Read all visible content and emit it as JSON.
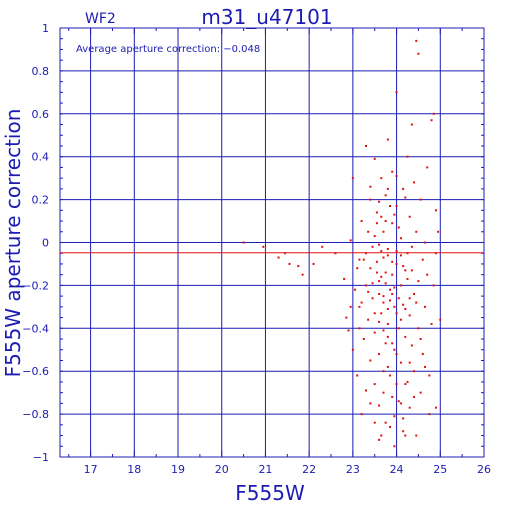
{
  "chart_data": {
    "type": "scatter",
    "title": "m31_u47101",
    "panel_label": "WF2",
    "annotation": "Average aperture correction: −0.048",
    "xlabel": "F555W",
    "ylabel": "F555W aperture correction",
    "xlim": [
      16.3,
      26
    ],
    "ylim": [
      -1,
      1
    ],
    "x_ticks": [
      17,
      18,
      19,
      20,
      21,
      22,
      23,
      24,
      25,
      26
    ],
    "y_ticks": [
      -1,
      -0.8,
      -0.6,
      -0.4,
      -0.2,
      0,
      0.2,
      0.4,
      0.6,
      0.8,
      1
    ],
    "x_tick_labels": [
      "17",
      "18",
      "19",
      "20",
      "21",
      "22",
      "23",
      "24",
      "25",
      "26"
    ],
    "y_tick_labels": [
      "−1",
      "−0.8",
      "−0.6",
      "−0.4",
      "−0.2",
      "0",
      "0.2",
      "0.4",
      "0.6",
      "0.8",
      "1"
    ],
    "grid": true,
    "reference_line": {
      "y": -0.048,
      "color": "#e01010"
    },
    "colors": {
      "axes": "#1c1cb4",
      "points": "#e01010",
      "background": "#ffffff"
    },
    "series": [
      {
        "points": [
          [
            20.5,
            0.0
          ],
          [
            20.95,
            -0.02
          ],
          [
            21.3,
            -0.07
          ],
          [
            21.45,
            -0.05
          ],
          [
            21.55,
            -0.1
          ],
          [
            21.75,
            -0.11
          ],
          [
            21.85,
            -0.15
          ],
          [
            22.1,
            -0.1
          ],
          [
            22.3,
            -0.02
          ],
          [
            22.6,
            -0.05
          ],
          [
            22.8,
            -0.17
          ],
          [
            22.85,
            -0.35
          ],
          [
            22.9,
            -0.41
          ],
          [
            22.95,
            -0.3
          ],
          [
            22.95,
            0.01
          ],
          [
            23.0,
            0.3
          ],
          [
            23.0,
            -0.5
          ],
          [
            23.05,
            -0.22
          ],
          [
            23.1,
            -0.12
          ],
          [
            23.1,
            -0.62
          ],
          [
            23.15,
            -0.08
          ],
          [
            23.15,
            -0.3
          ],
          [
            23.2,
            0.1
          ],
          [
            23.2,
            -0.8
          ],
          [
            23.25,
            -0.45
          ],
          [
            23.3,
            0.45
          ],
          [
            23.3,
            -0.2
          ],
          [
            23.3,
            -0.69
          ],
          [
            23.35,
            0.05
          ],
          [
            23.35,
            -0.36
          ],
          [
            23.4,
            0.2
          ],
          [
            23.4,
            -0.12
          ],
          [
            23.4,
            -0.55
          ],
          [
            23.45,
            -0.02
          ],
          [
            23.45,
            -0.26
          ],
          [
            23.5,
            0.39
          ],
          [
            23.5,
            -0.42
          ],
          [
            23.5,
            -0.84
          ],
          [
            23.55,
            0.14
          ],
          [
            23.55,
            -0.09
          ],
          [
            23.6,
            -0.18
          ],
          [
            23.6,
            -0.52
          ],
          [
            23.6,
            -0.92
          ],
          [
            23.65,
            0.3
          ],
          [
            23.65,
            -0.04
          ],
          [
            23.65,
            -0.33
          ],
          [
            23.7,
            0.05
          ],
          [
            23.7,
            -0.25
          ],
          [
            23.7,
            -0.7
          ],
          [
            23.75,
            0.22
          ],
          [
            23.75,
            -0.14
          ],
          [
            23.75,
            -0.47
          ],
          [
            23.8,
            0.48
          ],
          [
            23.8,
            -0.06
          ],
          [
            23.8,
            -0.38
          ],
          [
            23.85,
            -0.22
          ],
          [
            23.85,
            -0.62
          ],
          [
            23.85,
            -0.86
          ],
          [
            23.9,
            0.33
          ],
          [
            23.9,
            0.09
          ],
          [
            23.9,
            -0.15
          ],
          [
            23.95,
            -0.3
          ],
          [
            23.95,
            -0.5
          ],
          [
            23.95,
            -0.95
          ],
          [
            24.0,
            0.7
          ],
          [
            24.0,
            0.17
          ],
          [
            24.0,
            -0.1
          ],
          [
            24.05,
            -0.4
          ],
          [
            24.05,
            -0.74
          ],
          [
            24.1,
            0.02
          ],
          [
            24.1,
            -0.2
          ],
          [
            24.1,
            -0.56
          ],
          [
            24.15,
            0.25
          ],
          [
            24.15,
            -0.29
          ],
          [
            24.15,
            -0.82
          ],
          [
            24.2,
            -0.13
          ],
          [
            24.2,
            -0.44
          ],
          [
            24.2,
            -0.9
          ],
          [
            24.25,
            0.4
          ],
          [
            24.25,
            -0.05
          ],
          [
            24.25,
            -0.65
          ],
          [
            24.3,
            0.12
          ],
          [
            24.3,
            -0.34
          ],
          [
            24.3,
            -0.77
          ],
          [
            24.35,
            0.55
          ],
          [
            24.35,
            -0.02
          ],
          [
            24.35,
            -0.48
          ],
          [
            24.4,
            0.28
          ],
          [
            24.4,
            -0.24
          ],
          [
            24.4,
            -0.6
          ],
          [
            24.45,
            0.94
          ],
          [
            24.45,
            0.05
          ],
          [
            24.45,
            -0.9
          ],
          [
            24.5,
            0.88
          ],
          [
            24.5,
            -0.18
          ],
          [
            24.5,
            -0.4
          ],
          [
            24.55,
            0.2
          ],
          [
            24.55,
            -0.7
          ],
          [
            24.6,
            -0.08
          ],
          [
            24.6,
            -0.52
          ],
          [
            24.65,
            0.0
          ],
          [
            24.65,
            -0.3
          ],
          [
            24.7,
            0.35
          ],
          [
            24.7,
            -0.15
          ],
          [
            24.75,
            -0.62
          ],
          [
            24.75,
            -0.8
          ],
          [
            24.8,
            0.57
          ],
          [
            24.8,
            -0.38
          ],
          [
            24.85,
            0.6
          ],
          [
            24.85,
            -0.2
          ],
          [
            24.9,
            0.15
          ],
          [
            24.9,
            -0.77
          ],
          [
            24.95,
            0.05
          ],
          [
            25.0,
            -0.36
          ],
          [
            24.9,
            -0.05
          ],
          [
            23.5,
            0.03
          ],
          [
            23.6,
            -0.01
          ],
          [
            23.7,
            -0.07
          ],
          [
            23.8,
            -0.03
          ],
          [
            23.9,
            -0.09
          ],
          [
            24.0,
            -0.04
          ],
          [
            24.1,
            -0.06
          ],
          [
            23.55,
            -0.14
          ],
          [
            23.65,
            -0.16
          ],
          [
            23.75,
            -0.19
          ],
          [
            23.85,
            -0.27
          ],
          [
            23.95,
            -0.21
          ],
          [
            24.05,
            -0.26
          ],
          [
            23.6,
            -0.24
          ],
          [
            23.7,
            -0.28
          ],
          [
            23.8,
            -0.31
          ],
          [
            23.9,
            -0.24
          ],
          [
            24.0,
            -0.33
          ],
          [
            23.45,
            -0.19
          ],
          [
            23.35,
            -0.23
          ],
          [
            23.25,
            -0.08
          ],
          [
            24.15,
            -0.11
          ],
          [
            24.25,
            -0.17
          ],
          [
            24.35,
            -0.13
          ],
          [
            23.5,
            -0.33
          ],
          [
            23.6,
            -0.37
          ],
          [
            23.7,
            -0.41
          ],
          [
            23.8,
            -0.44
          ],
          [
            23.9,
            -0.47
          ],
          [
            24.0,
            -0.52
          ],
          [
            24.1,
            -0.36
          ],
          [
            24.2,
            -0.31
          ],
          [
            24.3,
            -0.26
          ],
          [
            23.55,
            0.09
          ],
          [
            23.65,
            0.12
          ],
          [
            23.75,
            0.1
          ],
          [
            23.85,
            0.17
          ],
          [
            23.95,
            0.13
          ],
          [
            24.05,
            0.07
          ],
          [
            23.4,
            0.26
          ],
          [
            23.6,
            0.19
          ],
          [
            23.8,
            0.25
          ],
          [
            24.0,
            0.31
          ],
          [
            24.2,
            0.21
          ],
          [
            23.3,
            -0.05
          ],
          [
            23.2,
            -0.28
          ],
          [
            23.15,
            -0.4
          ],
          [
            24.45,
            -0.28
          ],
          [
            24.55,
            -0.45
          ],
          [
            24.65,
            -0.58
          ],
          [
            24.4,
            -0.72
          ],
          [
            24.3,
            -0.56
          ],
          [
            24.2,
            -0.66
          ],
          [
            24.1,
            -0.75
          ],
          [
            24.0,
            -0.66
          ],
          [
            23.9,
            -0.72
          ],
          [
            23.8,
            -0.58
          ],
          [
            23.7,
            -0.6
          ],
          [
            23.6,
            -0.76
          ],
          [
            23.5,
            -0.66
          ],
          [
            23.4,
            -0.75
          ],
          [
            23.75,
            -0.84
          ],
          [
            23.95,
            -0.81
          ],
          [
            24.15,
            -0.88
          ],
          [
            23.65,
            -0.9
          ]
        ]
      }
    ]
  }
}
